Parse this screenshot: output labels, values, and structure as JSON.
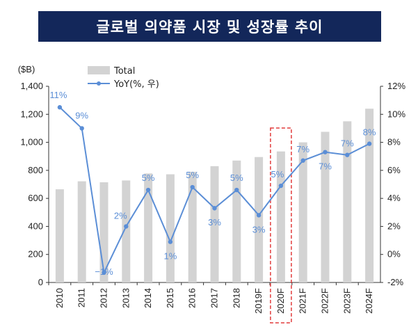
{
  "header": {
    "title": "글로벌 의약품 시장 및 성장률 추이"
  },
  "chart_data": {
    "type": "bar",
    "title": "글로벌 의약품 시장 및 성장률 추이",
    "categories": [
      "2010",
      "2011",
      "2012",
      "2013",
      "2014",
      "2015",
      "2016",
      "2017",
      "2018",
      "2019F",
      "2020F",
      "2021F",
      "2022F",
      "2023F",
      "2024F"
    ],
    "left_axis": {
      "unit_label": "($B)",
      "range": [
        0,
        1400
      ],
      "ticks": [
        "0",
        "200",
        "400",
        "600",
        "800",
        "1,000",
        "1,200",
        "1,400"
      ],
      "tick_values": [
        0,
        200,
        400,
        600,
        800,
        1000,
        1200,
        1400
      ]
    },
    "right_axis": {
      "range": [
        -2,
        12
      ],
      "ticks": [
        "-2%",
        "0%",
        "2%",
        "4%",
        "6%",
        "8%",
        "10%",
        "12%"
      ],
      "tick_values": [
        -2,
        0,
        2,
        4,
        6,
        8,
        10,
        12
      ]
    },
    "series": [
      {
        "name": "Total",
        "type": "bar",
        "axis": "left",
        "values": [
          665,
          722,
          715,
          728,
          778,
          772,
          790,
          830,
          870,
          895,
          935,
          1000,
          1075,
          1150,
          1240
        ]
      },
      {
        "name": "YoY(%, 우)",
        "type": "line",
        "axis": "right",
        "values": [
          10.5,
          9.0,
          -1.3,
          2.0,
          4.6,
          0.9,
          4.8,
          3.3,
          4.6,
          2.8,
          4.9,
          6.7,
          7.3,
          7.1,
          7.9
        ],
        "labels": [
          "11%",
          "9%",
          "-1%",
          "2%",
          "5%",
          "1%",
          "5%",
          "3%",
          "5%",
          "3%",
          "5%",
          "7%",
          "7%",
          "7%",
          "8%"
        ]
      }
    ],
    "highlight": {
      "category": "2020F",
      "style": "dashed-red-box"
    },
    "legend": {
      "position": "top-left"
    },
    "grid": false,
    "colors": {
      "bar": "#d3d3d3",
      "line": "#5b8ed6",
      "highlight": "#e23b3b",
      "title_bg": "#13275a"
    }
  }
}
